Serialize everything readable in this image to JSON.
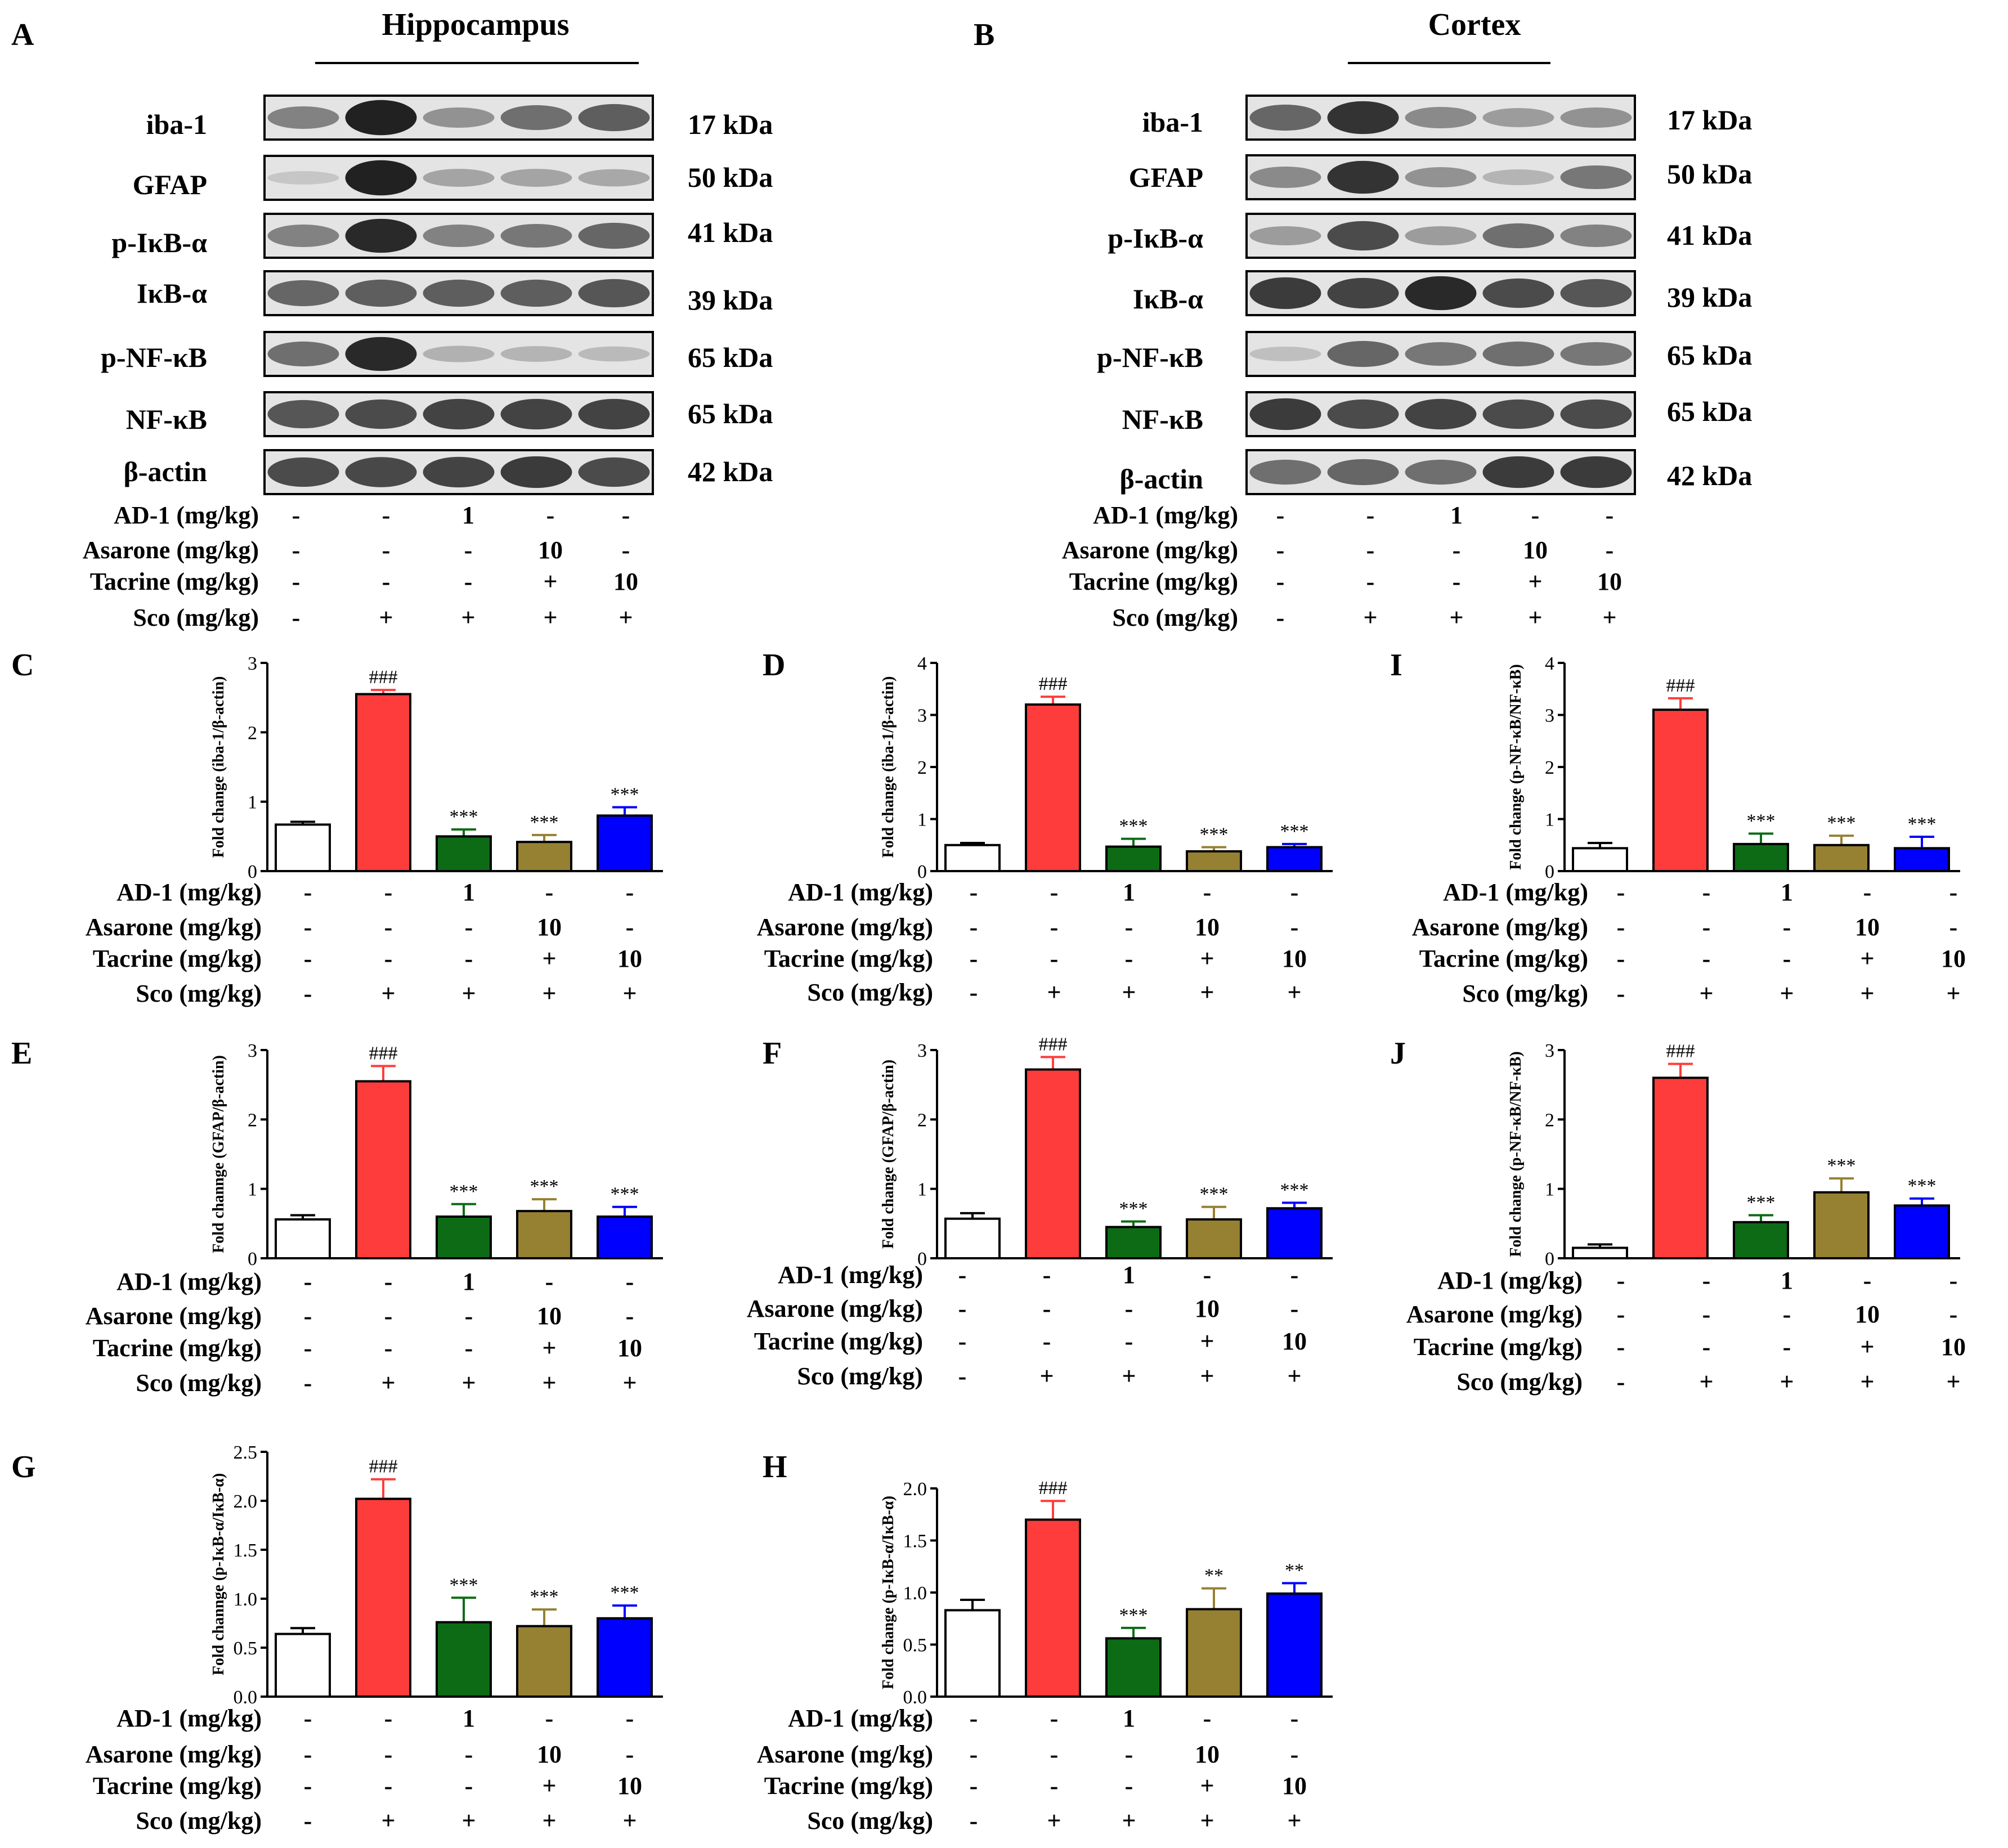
{
  "blots": [
    {
      "letter": "A",
      "title": "Hippocampus",
      "rows": [
        {
          "label": "iba-1",
          "size": "17 kDa",
          "band": [
            0.45,
            1.0,
            0.35,
            0.55,
            0.65
          ]
        },
        {
          "label": "GFAP",
          "size": "50 kDa",
          "band": [
            0.05,
            1.0,
            0.25,
            0.25,
            0.22
          ]
        },
        {
          "label": "p-IκB-α",
          "size": "41 kDa",
          "band": [
            0.45,
            0.95,
            0.45,
            0.5,
            0.6
          ]
        },
        {
          "label": "IκB-α",
          "size": "39 kDa",
          "band": [
            0.6,
            0.65,
            0.65,
            0.65,
            0.7
          ]
        },
        {
          "label": "p-NF-κB",
          "size": "65 kDa",
          "band": [
            0.55,
            0.95,
            0.18,
            0.15,
            0.12
          ]
        },
        {
          "label": "NF-κB",
          "size": "65 kDa",
          "band": [
            0.7,
            0.75,
            0.8,
            0.8,
            0.8
          ]
        },
        {
          "label": "β-actin",
          "size": "42 kDa",
          "band": [
            0.75,
            0.78,
            0.8,
            0.85,
            0.75
          ]
        }
      ]
    },
    {
      "letter": "B",
      "title": "Cortex",
      "rows": [
        {
          "label": "iba-1",
          "size": "17 kDa",
          "band": [
            0.6,
            0.9,
            0.4,
            0.3,
            0.35
          ]
        },
        {
          "label": "GFAP",
          "size": "50 kDa",
          "band": [
            0.4,
            0.9,
            0.35,
            0.15,
            0.5
          ]
        },
        {
          "label": "p-IκB-α",
          "size": "41 kDa",
          "band": [
            0.3,
            0.75,
            0.3,
            0.55,
            0.45
          ]
        },
        {
          "label": "IκB-α",
          "size": "39 kDa",
          "band": [
            0.85,
            0.8,
            0.95,
            0.75,
            0.7
          ]
        },
        {
          "label": "p-NF-κB",
          "size": "65 kDa",
          "band": [
            0.1,
            0.6,
            0.5,
            0.55,
            0.5
          ]
        },
        {
          "label": "NF-κB",
          "size": "65 kDa",
          "band": [
            0.85,
            0.75,
            0.8,
            0.75,
            0.75
          ]
        },
        {
          "label": "β-actin",
          "size": "42 kDa",
          "band": [
            0.55,
            0.6,
            0.55,
            0.85,
            0.85
          ]
        }
      ]
    }
  ],
  "treatment": {
    "labels": [
      "AD-1 (mg/kg)",
      "Asarone (mg/kg)",
      "Tacrine (mg/kg)",
      "Sco (mg/kg)"
    ],
    "values": [
      [
        "-",
        "-",
        "1",
        "-",
        "-"
      ],
      [
        "-",
        "-",
        "-",
        "10",
        "-"
      ],
      [
        "-",
        "-",
        "-",
        "+",
        "10"
      ],
      [
        "-",
        "+",
        "+",
        "+",
        "+"
      ]
    ]
  },
  "colors": {
    "bars": [
      "#ffffff",
      "#ff3c3c",
      "#0d6b16",
      "#968032",
      "#0000ff"
    ],
    "blot_background": "#e4e4e4",
    "band": "#161616"
  },
  "chart_data": [
    {
      "panel": "C",
      "type": "bar",
      "ylabel": "Fold change (iba-1/β-actin)",
      "ylim": [
        0,
        3
      ],
      "yticks": [
        "0",
        "1",
        "2",
        "3"
      ],
      "values": [
        0.67,
        2.55,
        0.5,
        0.42,
        0.8
      ],
      "errors": [
        0.04,
        0.06,
        0.1,
        0.1,
        0.12
      ],
      "annotations": [
        "",
        "###",
        "***",
        "***",
        "***"
      ]
    },
    {
      "panel": "D",
      "type": "bar",
      "ylabel": "Fold change (iba-1/β-actin)",
      "ylim": [
        0,
        4
      ],
      "yticks": [
        "0",
        "1",
        "2",
        "3",
        "4"
      ],
      "values": [
        0.5,
        3.2,
        0.47,
        0.38,
        0.46
      ],
      "errors": [
        0.04,
        0.15,
        0.15,
        0.08,
        0.06
      ],
      "annotations": [
        "",
        "###",
        "***",
        "***",
        "***"
      ]
    },
    {
      "panel": "I",
      "type": "bar",
      "ylabel": "Fold change (p-NF-κB/NF-κB)",
      "ylim": [
        0,
        4
      ],
      "yticks": [
        "0",
        "1",
        "2",
        "3",
        "4"
      ],
      "values": [
        0.44,
        3.1,
        0.52,
        0.5,
        0.44
      ],
      "errors": [
        0.1,
        0.22,
        0.2,
        0.18,
        0.22
      ],
      "annotations": [
        "",
        "###",
        "***",
        "***",
        "***"
      ]
    },
    {
      "panel": "E",
      "type": "bar",
      "ylabel": "Fold channge (GFAP/β-actin)",
      "ylim": [
        0,
        3
      ],
      "yticks": [
        "0",
        "1",
        "2",
        "3"
      ],
      "values": [
        0.56,
        2.55,
        0.6,
        0.68,
        0.6
      ],
      "errors": [
        0.06,
        0.22,
        0.18,
        0.17,
        0.14
      ],
      "annotations": [
        "",
        "###",
        "***",
        "***",
        "***"
      ]
    },
    {
      "panel": "F",
      "type": "bar",
      "ylabel": "Fold change (GFAP/β-actin)",
      "ylim": [
        0,
        3
      ],
      "yticks": [
        "0",
        "1",
        "2",
        "3"
      ],
      "values": [
        0.57,
        2.72,
        0.45,
        0.56,
        0.72
      ],
      "errors": [
        0.08,
        0.18,
        0.08,
        0.18,
        0.08
      ],
      "annotations": [
        "",
        "###",
        "***",
        "***",
        "***"
      ]
    },
    {
      "panel": "J",
      "type": "bar",
      "ylabel": "Fold change (p-NF-κB/NF-κB)",
      "ylim": [
        0,
        3
      ],
      "yticks": [
        "0",
        "1",
        "2",
        "3"
      ],
      "values": [
        0.15,
        2.6,
        0.52,
        0.95,
        0.76
      ],
      "errors": [
        0.05,
        0.2,
        0.1,
        0.2,
        0.1
      ],
      "annotations": [
        "",
        "###",
        "***",
        "***",
        "***"
      ]
    },
    {
      "panel": "G",
      "type": "bar",
      "ylabel": "Fold channge (p-IκB-α/IκB-α)",
      "ylim": [
        0,
        2.5
      ],
      "yticks": [
        "0.0",
        "0.5",
        "1.0",
        "1.5",
        "2.0",
        "2.5"
      ],
      "values": [
        0.64,
        2.02,
        0.76,
        0.72,
        0.8
      ],
      "errors": [
        0.06,
        0.2,
        0.25,
        0.17,
        0.13
      ],
      "annotations": [
        "",
        "###",
        "***",
        "***",
        "***"
      ]
    },
    {
      "panel": "H",
      "type": "bar",
      "ylabel": "Fold change (p-IκB-α/IκB-α)",
      "ylim": [
        0,
        2.0
      ],
      "yticks": [
        "0.0",
        "0.5",
        "1.0",
        "1.5",
        "2.0"
      ],
      "values": [
        0.83,
        1.7,
        0.56,
        0.84,
        0.99
      ],
      "errors": [
        0.1,
        0.18,
        0.1,
        0.2,
        0.1
      ],
      "annotations": [
        "",
        "###",
        "***",
        "**",
        "**"
      ]
    }
  ]
}
